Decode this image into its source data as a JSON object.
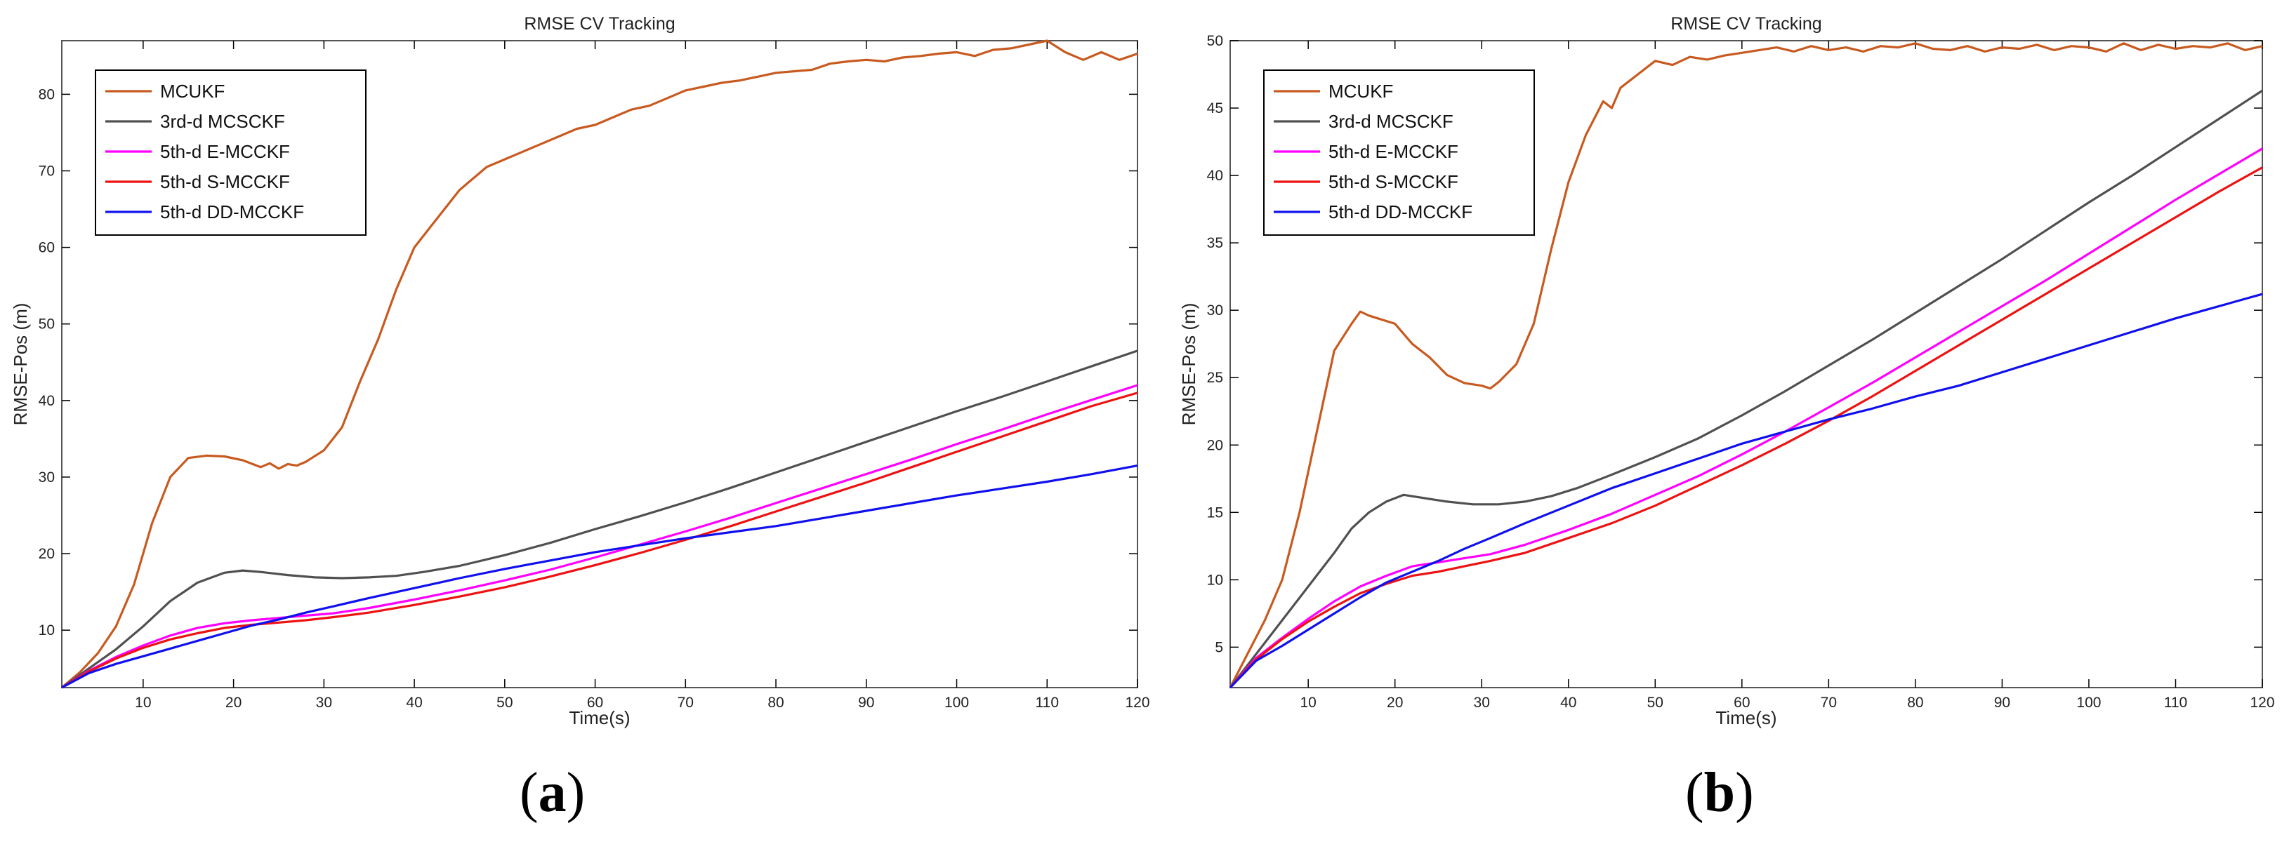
{
  "colors": {
    "MCUKF": "#c85a20",
    "3rd-d MCSCKF": "#505050",
    "5th-d E-MCCKF": "#ff00ff",
    "5th-d S-MCCKF": "#ee1111",
    "5th-d DD-MCCKF": "#1010ee",
    "axis": "#000000",
    "frame": "#555555"
  },
  "chart_data": [
    {
      "type": "line",
      "panel_label": "a",
      "title": "RMSE CV Tracking",
      "xlabel": "Time(s)",
      "ylabel": "RMSE-Pos (m)",
      "xlim": [
        1,
        120
      ],
      "ylim": [
        2.5,
        87
      ],
      "xticks": [
        10,
        20,
        30,
        40,
        50,
        60,
        70,
        80,
        90,
        100,
        110,
        120
      ],
      "yticks": [
        10,
        20,
        30,
        40,
        50,
        60,
        70,
        80
      ],
      "legend": [
        "MCUKF",
        "3rd-d MCSCKF",
        "5th-d E-MCCKF",
        "5th-d S-MCCKF",
        "5th-d DD-MCCKF"
      ],
      "series": [
        {
          "name": "MCUKF",
          "x": [
            1,
            3,
            5,
            7,
            9,
            11,
            13,
            15,
            17,
            19,
            21,
            23,
            24,
            25,
            26,
            27,
            28,
            30,
            32,
            34,
            36,
            38,
            40,
            42,
            44,
            45,
            46,
            48,
            50,
            52,
            54,
            56,
            58,
            60,
            62,
            64,
            66,
            68,
            70,
            72,
            74,
            76,
            78,
            80,
            82,
            84,
            86,
            88,
            90,
            92,
            94,
            96,
            98,
            100,
            102,
            104,
            106,
            108,
            110,
            112,
            114,
            116,
            118,
            120
          ],
          "y": [
            2.5,
            4.5,
            7,
            10.5,
            16,
            24,
            30,
            32.5,
            32.8,
            32.7,
            32.2,
            31.3,
            31.8,
            31.1,
            31.7,
            31.5,
            32,
            33.5,
            36.5,
            42.5,
            48,
            54.5,
            60,
            63,
            66,
            67.5,
            68.5,
            70.5,
            71.5,
            72.5,
            73.5,
            74.5,
            75.5,
            76,
            77,
            78,
            78.5,
            79.5,
            80.5,
            81,
            81.5,
            81.8,
            82.3,
            82.8,
            83,
            83.2,
            84,
            84.3,
            84.5,
            84.3,
            84.8,
            85,
            85.3,
            85.5,
            85,
            85.8,
            86,
            86.5,
            87,
            85.5,
            84.5,
            85.5,
            84.5,
            85.3
          ]
        },
        {
          "name": "3rd-d MCSCKF",
          "x": [
            1,
            4,
            7,
            10,
            13,
            16,
            19,
            21,
            23,
            26,
            29,
            32,
            35,
            38,
            41,
            45,
            50,
            55,
            60,
            65,
            70,
            75,
            80,
            85,
            90,
            95,
            100,
            105,
            110,
            115,
            120
          ],
          "y": [
            2.5,
            5,
            7.5,
            10.5,
            13.8,
            16.2,
            17.5,
            17.8,
            17.6,
            17.2,
            16.9,
            16.8,
            16.9,
            17.1,
            17.6,
            18.4,
            19.8,
            21.4,
            23.2,
            24.9,
            26.7,
            28.6,
            30.6,
            32.6,
            34.6,
            36.6,
            38.6,
            40.5,
            42.5,
            44.5,
            46.5
          ]
        },
        {
          "name": "5th-d E-MCCKF",
          "x": [
            1,
            4,
            7,
            10,
            13,
            16,
            19,
            22,
            25,
            28,
            31,
            35,
            40,
            45,
            50,
            55,
            60,
            65,
            70,
            75,
            80,
            85,
            90,
            95,
            100,
            105,
            110,
            115,
            120
          ],
          "y": [
            2.5,
            4.7,
            6.5,
            8,
            9.3,
            10.3,
            10.9,
            11.3,
            11.6,
            11.9,
            12.2,
            12.9,
            14,
            15.2,
            16.5,
            17.9,
            19.5,
            21.2,
            22.9,
            24.7,
            26.6,
            28.5,
            30.4,
            32.3,
            34.3,
            36.2,
            38.2,
            40.1,
            42
          ]
        },
        {
          "name": "5th-d S-MCCKF",
          "x": [
            1,
            4,
            7,
            10,
            13,
            16,
            19,
            22,
            25,
            28,
            31,
            35,
            40,
            45,
            50,
            55,
            60,
            65,
            70,
            75,
            80,
            85,
            90,
            95,
            100,
            105,
            110,
            115,
            120
          ],
          "y": [
            2.5,
            4.6,
            6.3,
            7.7,
            8.8,
            9.6,
            10.3,
            10.7,
            11,
            11.3,
            11.7,
            12.3,
            13.3,
            14.4,
            15.6,
            17,
            18.5,
            20.1,
            21.8,
            23.6,
            25.5,
            27.4,
            29.3,
            31.3,
            33.3,
            35.3,
            37.3,
            39.3,
            41
          ]
        },
        {
          "name": "5th-d DD-MCCKF",
          "x": [
            1,
            4,
            7,
            10,
            13,
            16,
            19,
            22,
            25,
            28,
            31,
            35,
            40,
            45,
            50,
            55,
            60,
            65,
            70,
            75,
            80,
            85,
            90,
            95,
            100,
            105,
            110,
            115,
            120
          ],
          "y": [
            2.5,
            4.4,
            5.6,
            6.6,
            7.6,
            8.6,
            9.6,
            10.6,
            11.4,
            12.3,
            13.1,
            14.2,
            15.5,
            16.8,
            18,
            19.1,
            20.2,
            21.1,
            22,
            22.8,
            23.6,
            24.6,
            25.6,
            26.6,
            27.6,
            28.5,
            29.4,
            30.4,
            31.5
          ]
        }
      ]
    },
    {
      "type": "line",
      "panel_label": "b",
      "title": "RMSE CV Tracking",
      "xlabel": "Time(s)",
      "ylabel": "RMSE-Pos (m)",
      "xlim": [
        1,
        120
      ],
      "ylim": [
        2,
        50
      ],
      "xticks": [
        10,
        20,
        30,
        40,
        50,
        60,
        70,
        80,
        90,
        100,
        110,
        120
      ],
      "yticks": [
        5,
        10,
        15,
        20,
        25,
        30,
        35,
        40,
        45,
        50
      ],
      "legend": [
        "MCUKF",
        "3rd-d MCSCKF",
        "5th-d E-MCCKF",
        "5th-d S-MCCKF",
        "5th-d DD-MCCKF"
      ],
      "series": [
        {
          "name": "MCUKF",
          "x": [
            1,
            3,
            5,
            7,
            9,
            11,
            13,
            15,
            16,
            17,
            18,
            20,
            22,
            24,
            26,
            28,
            30,
            31,
            32,
            34,
            36,
            38,
            40,
            42,
            44,
            45,
            46,
            48,
            50,
            52,
            54,
            56,
            58,
            60,
            62,
            64,
            66,
            68,
            70,
            72,
            74,
            76,
            78,
            80,
            82,
            84,
            86,
            88,
            90,
            92,
            94,
            96,
            98,
            100,
            102,
            104,
            106,
            108,
            110,
            112,
            114,
            116,
            118,
            120
          ],
          "y": [
            2,
            4.5,
            7,
            10,
            15,
            21,
            27,
            29,
            29.9,
            29.6,
            29.4,
            29,
            27.5,
            26.5,
            25.2,
            24.6,
            24.4,
            24.2,
            24.7,
            26,
            29,
            34.5,
            39.5,
            43,
            45.5,
            45,
            46.5,
            47.5,
            48.5,
            48.2,
            48.8,
            48.6,
            48.9,
            49.1,
            49.3,
            49.5,
            49.2,
            49.6,
            49.3,
            49.5,
            49.2,
            49.6,
            49.5,
            49.8,
            49.4,
            49.3,
            49.6,
            49.2,
            49.5,
            49.4,
            49.7,
            49.3,
            49.6,
            49.5,
            49.2,
            49.8,
            49.3,
            49.7,
            49.4,
            49.6,
            49.5,
            49.8,
            49.3,
            49.6
          ]
        },
        {
          "name": "3rd-d MCSCKF",
          "x": [
            1,
            4,
            7,
            10,
            13,
            15,
            17,
            19,
            21,
            23,
            26,
            29,
            32,
            35,
            38,
            41,
            45,
            50,
            55,
            60,
            65,
            70,
            75,
            80,
            85,
            90,
            95,
            100,
            105,
            110,
            115,
            120
          ],
          "y": [
            2,
            4.5,
            7,
            9.5,
            12,
            13.8,
            15,
            15.8,
            16.3,
            16.1,
            15.8,
            15.6,
            15.6,
            15.8,
            16.2,
            16.8,
            17.8,
            19.1,
            20.5,
            22.2,
            24,
            25.9,
            27.8,
            29.8,
            31.8,
            33.8,
            35.9,
            38,
            40,
            42.1,
            44.2,
            46.3
          ]
        },
        {
          "name": "5th-d E-MCCKF",
          "x": [
            1,
            4,
            7,
            10,
            13,
            16,
            19,
            22,
            25,
            28,
            31,
            35,
            40,
            45,
            50,
            55,
            60,
            65,
            70,
            75,
            80,
            85,
            90,
            95,
            100,
            105,
            110,
            115,
            120
          ],
          "y": [
            2,
            4.2,
            5.7,
            7.1,
            8.4,
            9.5,
            10.3,
            11,
            11.3,
            11.6,
            11.9,
            12.6,
            13.7,
            14.9,
            16.3,
            17.7,
            19.3,
            21,
            22.8,
            24.6,
            26.5,
            28.4,
            30.3,
            32.2,
            34.2,
            36.2,
            38.2,
            40.1,
            42
          ]
        },
        {
          "name": "5th-d S-MCCKF",
          "x": [
            1,
            4,
            7,
            10,
            13,
            16,
            19,
            22,
            25,
            28,
            31,
            35,
            40,
            45,
            50,
            55,
            60,
            65,
            70,
            75,
            80,
            85,
            90,
            95,
            100,
            105,
            110,
            115,
            120
          ],
          "y": [
            2,
            4.1,
            5.6,
            6.9,
            8,
            9,
            9.7,
            10.3,
            10.6,
            11,
            11.4,
            12,
            13.1,
            14.2,
            15.5,
            17,
            18.5,
            20.1,
            21.8,
            23.6,
            25.5,
            27.4,
            29.3,
            31.2,
            33.1,
            35,
            36.9,
            38.8,
            40.6
          ]
        },
        {
          "name": "5th-d DD-MCCKF",
          "x": [
            1,
            4,
            7,
            10,
            13,
            16,
            19,
            22,
            25,
            28,
            31,
            35,
            40,
            45,
            50,
            55,
            60,
            65,
            70,
            75,
            80,
            85,
            90,
            95,
            100,
            105,
            110,
            115,
            120
          ],
          "y": [
            2,
            4,
            5.1,
            6.3,
            7.5,
            8.7,
            9.8,
            10.6,
            11.4,
            12.3,
            13.1,
            14.2,
            15.5,
            16.8,
            17.9,
            19,
            20.1,
            21,
            21.9,
            22.7,
            23.6,
            24.4,
            25.4,
            26.4,
            27.4,
            28.4,
            29.4,
            30.3,
            31.2
          ]
        }
      ]
    }
  ]
}
